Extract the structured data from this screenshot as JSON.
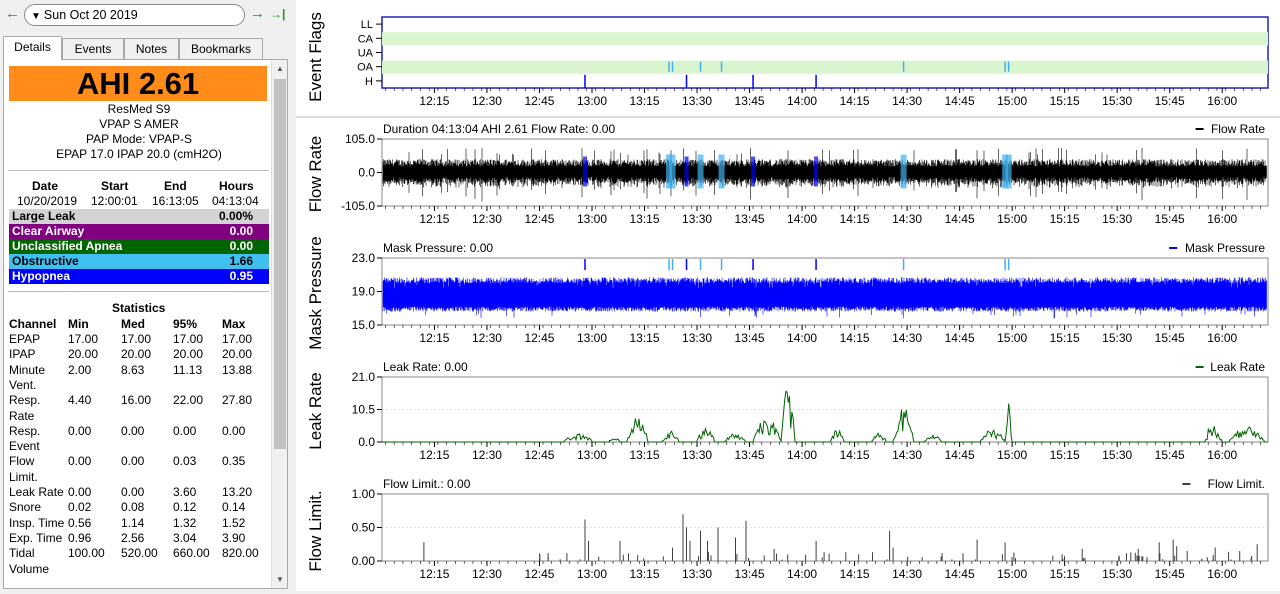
{
  "nav": {
    "prev_icon": "←",
    "next_icon": "→",
    "last_icon": "→|",
    "date": "Sun Oct 20 2019"
  },
  "tabs": [
    "Details",
    "Events",
    "Notes",
    "Bookmarks"
  ],
  "summary": {
    "ahi": "AHI 2.61",
    "machine": "ResMed S9",
    "model": "VPAP S AMER",
    "mode": "PAP Mode: VPAP-S",
    "pressures": "EPAP 17.0 IPAP 20.0 (cmH2O)"
  },
  "session": {
    "headers": [
      "Date",
      "Start",
      "End",
      "Hours"
    ],
    "values": [
      "10/20/2019",
      "12:00:01",
      "16:13:05",
      "04:13:04"
    ]
  },
  "events": [
    {
      "name": "Large Leak",
      "value": "0.00%",
      "bg": "#d3d3d3",
      "fg": "#000000"
    },
    {
      "name": "Clear Airway",
      "value": "0.00",
      "bg": "#800080",
      "fg": "#ffffff"
    },
    {
      "name": "Unclassified Apnea",
      "value": "0.00",
      "bg": "#006400",
      "fg": "#ffffff"
    },
    {
      "name": "Obstructive",
      "value": "1.66",
      "bg": "#40c0f0",
      "fg": "#000000"
    },
    {
      "name": "Hypopnea",
      "value": "0.95",
      "bg": "#0000ff",
      "fg": "#ffffff"
    }
  ],
  "statistics": {
    "title": "Statistics",
    "headers": [
      "Channel",
      "Min",
      "Med",
      "95%",
      "Max"
    ],
    "rows": [
      {
        "channel": [
          "EPAP"
        ],
        "vals": [
          "17.00",
          "17.00",
          "17.00",
          "17.00"
        ]
      },
      {
        "channel": [
          "IPAP"
        ],
        "vals": [
          "20.00",
          "20.00",
          "20.00",
          "20.00"
        ]
      },
      {
        "channel": [
          "Minute",
          "Vent."
        ],
        "vals": [
          "2.00",
          "8.63",
          "11.13",
          "13.88"
        ]
      },
      {
        "channel": [
          "Resp.",
          "Rate"
        ],
        "vals": [
          "4.40",
          "16.00",
          "22.00",
          "27.80"
        ]
      },
      {
        "channel": [
          "Resp.",
          "Event"
        ],
        "vals": [
          "0.00",
          "0.00",
          "0.00",
          "0.00"
        ]
      },
      {
        "channel": [
          "Flow",
          "Limit."
        ],
        "vals": [
          "0.00",
          "0.00",
          "0.03",
          "0.35"
        ]
      },
      {
        "channel": [
          "Leak Rate"
        ],
        "vals": [
          "0.00",
          "0.00",
          "3.60",
          "13.20"
        ]
      },
      {
        "channel": [
          "Snore"
        ],
        "vals": [
          "0.02",
          "0.08",
          "0.12",
          "0.14"
        ]
      },
      {
        "channel": [
          "Insp. Time"
        ],
        "vals": [
          "0.56",
          "1.14",
          "1.32",
          "1.52"
        ]
      },
      {
        "channel": [
          "Exp. Time"
        ],
        "vals": [
          "0.96",
          "2.56",
          "3.04",
          "3.90"
        ]
      },
      {
        "channel": [
          "Tidal",
          "Volume"
        ],
        "vals": [
          "100.00",
          "520.00",
          "660.00",
          "820.00"
        ]
      }
    ]
  },
  "time_ticks": [
    "12:15",
    "12:30",
    "12:45",
    "13:00",
    "13:15",
    "13:30",
    "13:45",
    "14:00",
    "14:15",
    "14:30",
    "14:45",
    "15:00",
    "15:15",
    "15:30",
    "15:45",
    "16:00"
  ],
  "chart_data": [
    {
      "type": "event-flags",
      "ylabel": "Event Flags",
      "flags": [
        "LL",
        "CA",
        "UA",
        "OA",
        "H"
      ],
      "flag_colors": {
        "LL": "#c8c8c8",
        "CA": "#d8f5d0",
        "UA": "#d8f5d0",
        "OA": "#d8f5d0",
        "H": "#0000ff"
      },
      "oa_events": [
        "13:22",
        "13:23",
        "13:31",
        "13:37",
        "14:29",
        "14:58",
        "14:59"
      ],
      "h_events": [
        "12:58",
        "13:27",
        "13:46",
        "14:04"
      ]
    },
    {
      "type": "line",
      "ylabel": "Flow Rate",
      "header": "Duration 04:13:04 AHI 2.61 Flow Rate: 0.00",
      "legend": "Flow Rate",
      "color": "#000000",
      "yticks": [
        "105.0",
        "0.0",
        "-105.0"
      ],
      "ylim": [
        -105,
        105
      ]
    },
    {
      "type": "line",
      "ylabel": "Mask Pressure",
      "header": "Mask Pressure: 0.00",
      "legend": "Mask Pressure",
      "color": "#0000ff",
      "yticks": [
        "23.0",
        "19.0",
        "15.0"
      ],
      "ylim": [
        15,
        23
      ]
    },
    {
      "type": "line",
      "ylabel": "Leak Rate",
      "header": "Leak Rate: 0.00",
      "legend": "Leak Rate",
      "color": "#006400",
      "yticks": [
        "21.0",
        "10.5",
        "0.0"
      ],
      "ylim": [
        0,
        21
      ]
    },
    {
      "type": "bar",
      "ylabel": "Flow Limit.",
      "header": "Flow Limit.: 0.00",
      "legend": "Flow Limit.",
      "color": "#404040",
      "yticks": [
        "1.00",
        "0.50",
        "0.00"
      ],
      "ylim": [
        0,
        1
      ]
    }
  ]
}
